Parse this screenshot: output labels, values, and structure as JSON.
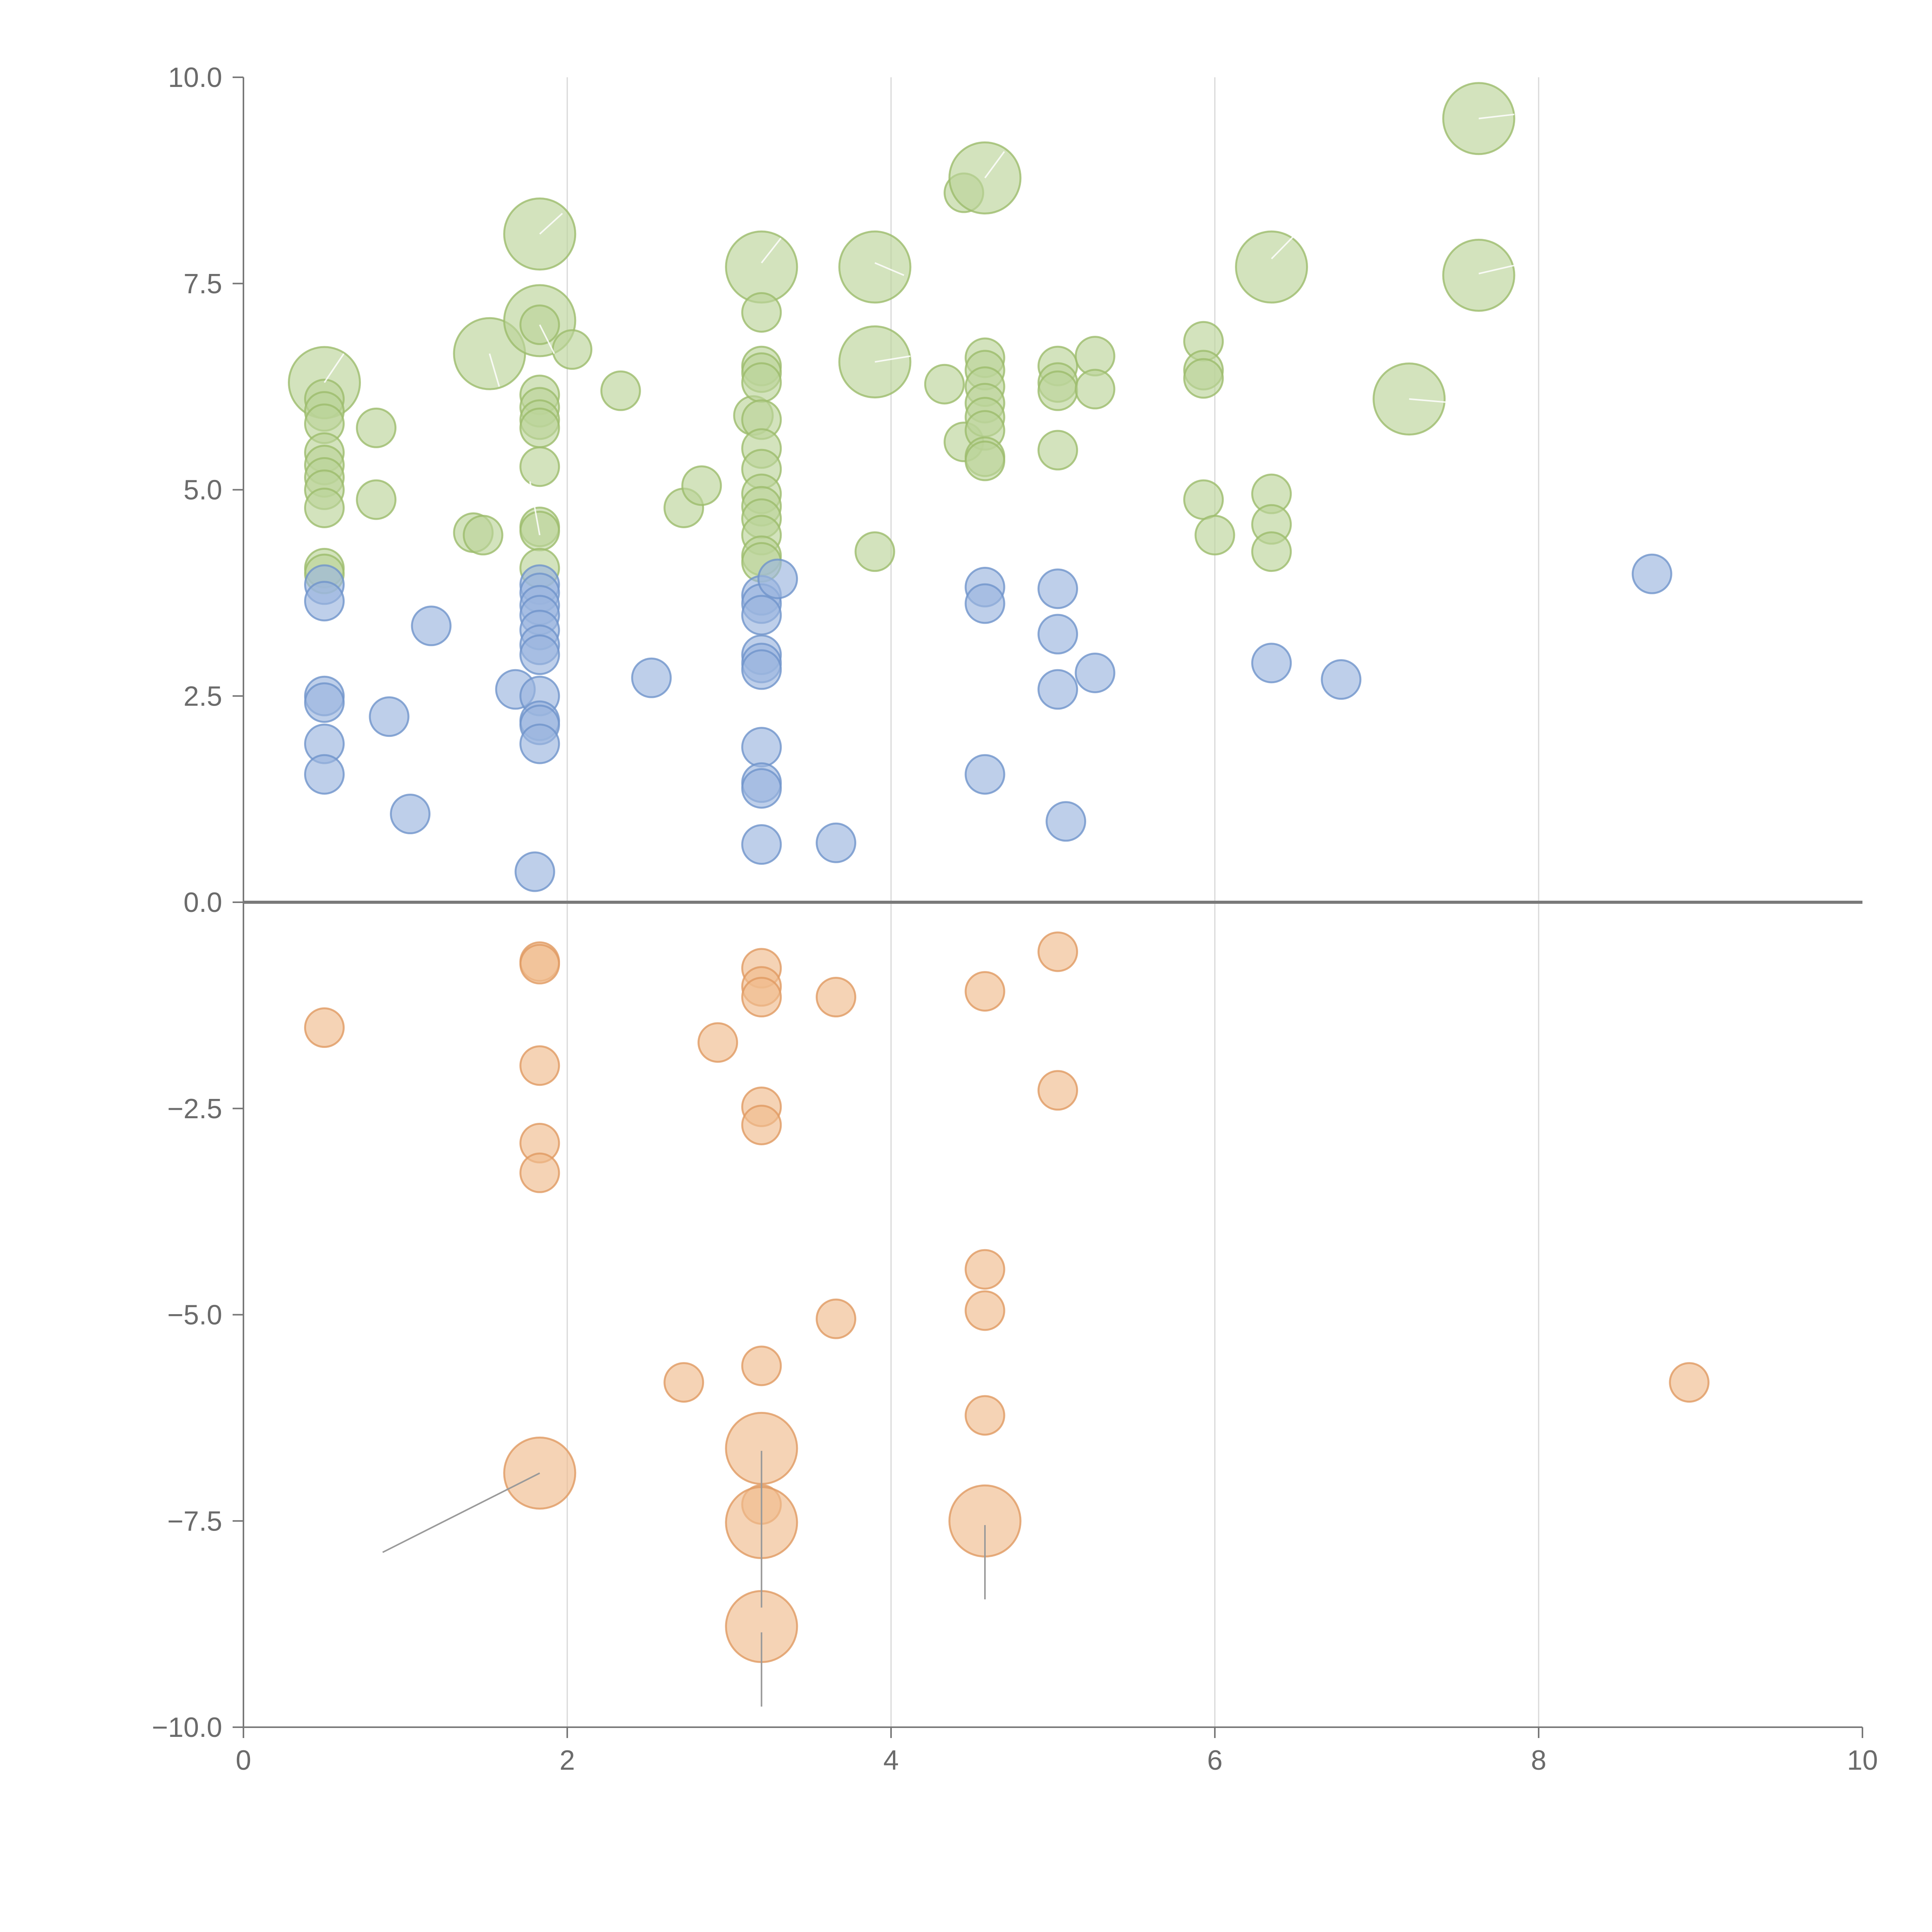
{
  "chart_data": {
    "type": "scatter",
    "subtype": "bubble",
    "title": "",
    "xlabel": "",
    "ylabel": "",
    "xlim": [
      0,
      10
    ],
    "ylim": [
      -10,
      10
    ],
    "grid": "vertical",
    "zero_line": true,
    "x_ticks": [
      "0",
      "2",
      "4",
      "6",
      "8",
      "10"
    ],
    "x_tick_values": [
      0,
      2,
      4,
      6,
      8,
      10
    ],
    "y_ticks": [
      "10.0",
      "7.5",
      "5.0",
      "2.5",
      "0.0",
      "−2.5",
      "−5.0",
      "−7.5",
      "−10.0"
    ],
    "y_tick_values": [
      10,
      7.5,
      5,
      2.5,
      0,
      -2.5,
      -5,
      -7.5,
      -10
    ],
    "colors": {
      "green_fill": "#bcd49a",
      "green_stroke": "#9cbc6c",
      "blue_fill": "#9bb5de",
      "blue_stroke": "#6f93cb",
      "orange_fill": "#f0bb8e",
      "orange_stroke": "#e09a62"
    },
    "series": [
      {
        "name": "green",
        "color": "green",
        "points": [
          [
            0.5,
            6.3,
            2
          ],
          [
            0.5,
            6.1,
            1
          ],
          [
            0.5,
            5.95,
            1
          ],
          [
            0.5,
            5.8,
            1
          ],
          [
            0.5,
            5.45,
            1
          ],
          [
            0.5,
            5.3,
            1
          ],
          [
            0.5,
            5.15,
            1
          ],
          [
            0.5,
            5.0,
            1
          ],
          [
            0.5,
            4.78,
            1
          ],
          [
            0.5,
            4.05,
            1
          ],
          [
            0.5,
            3.98,
            1
          ],
          [
            0.82,
            5.75,
            1
          ],
          [
            0.82,
            4.88,
            1
          ],
          [
            1.42,
            4.48,
            1
          ],
          [
            1.48,
            4.45,
            1
          ],
          [
            1.52,
            6.65,
            2
          ],
          [
            1.83,
            8.1,
            2
          ],
          [
            1.83,
            7.05,
            2
          ],
          [
            1.83,
            7.0,
            1
          ],
          [
            1.83,
            6.15,
            1
          ],
          [
            1.83,
            6.0,
            1
          ],
          [
            1.83,
            5.85,
            1
          ],
          [
            1.83,
            5.75,
            1
          ],
          [
            1.83,
            5.28,
            1
          ],
          [
            1.83,
            4.55,
            1
          ],
          [
            1.83,
            4.5,
            1
          ],
          [
            1.83,
            4.05,
            1
          ],
          [
            2.03,
            6.7,
            1
          ],
          [
            2.33,
            6.2,
            1
          ],
          [
            2.72,
            4.78,
            1
          ],
          [
            2.83,
            5.05,
            1
          ],
          [
            3.15,
            5.9,
            1
          ],
          [
            3.2,
            7.7,
            2
          ],
          [
            3.2,
            7.15,
            1
          ],
          [
            3.2,
            6.5,
            1
          ],
          [
            3.2,
            6.42,
            1
          ],
          [
            3.2,
            6.3,
            1
          ],
          [
            3.2,
            5.85,
            1
          ],
          [
            3.2,
            5.5,
            1
          ],
          [
            3.2,
            5.25,
            1
          ],
          [
            3.2,
            4.95,
            1
          ],
          [
            3.2,
            4.8,
            1
          ],
          [
            3.2,
            4.65,
            1
          ],
          [
            3.2,
            4.45,
            1
          ],
          [
            3.2,
            4.2,
            1
          ],
          [
            3.2,
            4.12,
            1
          ],
          [
            3.9,
            7.7,
            2
          ],
          [
            3.9,
            6.55,
            2
          ],
          [
            3.9,
            4.25,
            1
          ],
          [
            4.33,
            6.28,
            1
          ],
          [
            4.45,
            5.58,
            1
          ],
          [
            4.45,
            8.6,
            1
          ],
          [
            4.58,
            8.78,
            2
          ],
          [
            4.58,
            6.6,
            1
          ],
          [
            4.58,
            6.45,
            1
          ],
          [
            4.58,
            6.25,
            1
          ],
          [
            4.58,
            6.05,
            1
          ],
          [
            4.58,
            5.88,
            1
          ],
          [
            4.58,
            5.72,
            1
          ],
          [
            4.58,
            5.4,
            1
          ],
          [
            4.58,
            5.35,
            1
          ],
          [
            5.03,
            6.5,
            1
          ],
          [
            5.03,
            6.3,
            1
          ],
          [
            5.03,
            6.2,
            1
          ],
          [
            5.03,
            5.48,
            1
          ],
          [
            5.26,
            6.62,
            1
          ],
          [
            5.26,
            6.22,
            1
          ],
          [
            5.93,
            6.8,
            1
          ],
          [
            5.93,
            6.45,
            1
          ],
          [
            5.93,
            6.35,
            1
          ],
          [
            5.93,
            4.88,
            1
          ],
          [
            6.0,
            4.45,
            1
          ],
          [
            6.35,
            7.7,
            2
          ],
          [
            6.35,
            4.95,
            1
          ],
          [
            6.35,
            4.58,
            1
          ],
          [
            6.35,
            4.25,
            1
          ],
          [
            7.2,
            6.1,
            2
          ],
          [
            7.63,
            9.5,
            2
          ],
          [
            7.63,
            7.6,
            2
          ]
        ]
      },
      {
        "name": "blue",
        "color": "blue",
        "points": [
          [
            0.5,
            3.85,
            1
          ],
          [
            0.5,
            3.65,
            1
          ],
          [
            0.5,
            2.5,
            1
          ],
          [
            0.5,
            2.42,
            1
          ],
          [
            0.5,
            1.92,
            1
          ],
          [
            0.5,
            1.55,
            1
          ],
          [
            0.9,
            2.25,
            1
          ],
          [
            1.03,
            1.07,
            1
          ],
          [
            1.16,
            3.35,
            1
          ],
          [
            1.68,
            2.58,
            1
          ],
          [
            1.83,
            3.85,
            1
          ],
          [
            1.83,
            3.75,
            1
          ],
          [
            1.83,
            3.6,
            1
          ],
          [
            1.83,
            3.48,
            1
          ],
          [
            1.83,
            3.3,
            1
          ],
          [
            1.83,
            3.12,
            1
          ],
          [
            1.83,
            3.0,
            1
          ],
          [
            1.83,
            2.5,
            1
          ],
          [
            1.83,
            2.2,
            1
          ],
          [
            1.83,
            2.15,
            1
          ],
          [
            1.83,
            1.92,
            1
          ],
          [
            1.8,
            0.37,
            1
          ],
          [
            2.52,
            2.72,
            1
          ],
          [
            3.2,
            3.72,
            1
          ],
          [
            3.2,
            3.62,
            1
          ],
          [
            3.2,
            3.48,
            1
          ],
          [
            3.2,
            3.0,
            1
          ],
          [
            3.2,
            2.9,
            1
          ],
          [
            3.2,
            2.82,
            1
          ],
          [
            3.2,
            1.88,
            1
          ],
          [
            3.2,
            1.45,
            1
          ],
          [
            3.2,
            1.38,
            1
          ],
          [
            3.2,
            0.7,
            1
          ],
          [
            3.3,
            3.92,
            1
          ],
          [
            3.66,
            0.72,
            1
          ],
          [
            4.58,
            3.82,
            1
          ],
          [
            4.58,
            3.62,
            1
          ],
          [
            4.58,
            1.55,
            1
          ],
          [
            5.03,
            3.8,
            1
          ],
          [
            5.03,
            3.25,
            1
          ],
          [
            5.03,
            2.58,
            1
          ],
          [
            5.08,
            0.98,
            1
          ],
          [
            5.26,
            2.78,
            1
          ],
          [
            6.35,
            2.9,
            1
          ],
          [
            6.78,
            2.7,
            1
          ],
          [
            8.7,
            3.98,
            1
          ]
        ]
      },
      {
        "name": "orange",
        "color": "orange",
        "points": [
          [
            0.5,
            -1.52,
            1
          ],
          [
            1.83,
            -0.72,
            1
          ],
          [
            1.83,
            -0.75,
            1
          ],
          [
            1.83,
            -1.98,
            1
          ],
          [
            1.83,
            -2.92,
            1
          ],
          [
            1.83,
            -3.28,
            1
          ],
          [
            1.83,
            -6.92,
            2
          ],
          [
            2.93,
            -1.7,
            1
          ],
          [
            2.72,
            -5.82,
            1
          ],
          [
            3.2,
            -0.8,
            1
          ],
          [
            3.2,
            -1.02,
            1
          ],
          [
            3.2,
            -1.15,
            1
          ],
          [
            3.2,
            -2.48,
            1
          ],
          [
            3.2,
            -2.7,
            1
          ],
          [
            3.2,
            -5.62,
            1
          ],
          [
            3.2,
            -6.62,
            2
          ],
          [
            3.2,
            -7.3,
            1
          ],
          [
            3.2,
            -7.52,
            2
          ],
          [
            3.2,
            -8.78,
            2
          ],
          [
            3.66,
            -1.15,
            1
          ],
          [
            3.66,
            -5.05,
            1
          ],
          [
            4.58,
            -1.08,
            1
          ],
          [
            4.58,
            -4.45,
            1
          ],
          [
            4.58,
            -4.95,
            1
          ],
          [
            4.58,
            -6.22,
            1
          ],
          [
            4.58,
            -7.5,
            2
          ],
          [
            5.03,
            -0.6,
            1
          ],
          [
            5.03,
            -2.28,
            1
          ],
          [
            8.93,
            -5.82,
            1
          ]
        ]
      }
    ],
    "leaders": [
      {
        "from": [
          0.5,
          6.3
        ],
        "to": [
          0.62,
          6.65
        ],
        "tone": "light"
      },
      {
        "from": [
          1.83,
          8.1
        ],
        "to": [
          1.97,
          8.35
        ],
        "tone": "light"
      },
      {
        "from": [
          1.83,
          7.0
        ],
        "to": [
          1.92,
          6.65
        ],
        "tone": "light"
      },
      {
        "from": [
          1.52,
          6.65
        ],
        "to": [
          1.58,
          6.25
        ],
        "tone": "light"
      },
      {
        "from": [
          1.83,
          4.45
        ],
        "to": [
          1.77,
          5.1
        ],
        "tone": "light"
      },
      {
        "from": [
          3.2,
          7.75
        ],
        "to": [
          3.32,
          8.05
        ],
        "tone": "light"
      },
      {
        "from": [
          3.9,
          7.75
        ],
        "to": [
          4.08,
          7.6
        ],
        "tone": "light"
      },
      {
        "from": [
          3.9,
          6.55
        ],
        "to": [
          4.12,
          6.62
        ],
        "tone": "light"
      },
      {
        "from": [
          4.58,
          8.78
        ],
        "to": [
          4.7,
          9.1
        ],
        "tone": "light"
      },
      {
        "from": [
          6.35,
          7.8
        ],
        "to": [
          6.5,
          8.1
        ],
        "tone": "light"
      },
      {
        "from": [
          7.63,
          9.5
        ],
        "to": [
          7.85,
          9.55
        ],
        "tone": "light"
      },
      {
        "from": [
          7.63,
          7.62
        ],
        "to": [
          7.85,
          7.72
        ],
        "tone": "light"
      },
      {
        "from": [
          7.2,
          6.1
        ],
        "to": [
          7.5,
          6.05
        ],
        "tone": "light"
      },
      {
        "from": [
          1.83,
          -6.92
        ],
        "to": [
          0.86,
          -7.88
        ],
        "tone": "dark"
      },
      {
        "from": [
          3.2,
          -6.65
        ],
        "to": [
          3.2,
          -8.55
        ],
        "tone": "dark"
      },
      {
        "from": [
          3.2,
          -8.85
        ],
        "to": [
          3.2,
          -9.75
        ],
        "tone": "dark"
      },
      {
        "from": [
          4.58,
          -7.55
        ],
        "to": [
          4.58,
          -8.45
        ],
        "tone": "dark"
      }
    ]
  }
}
